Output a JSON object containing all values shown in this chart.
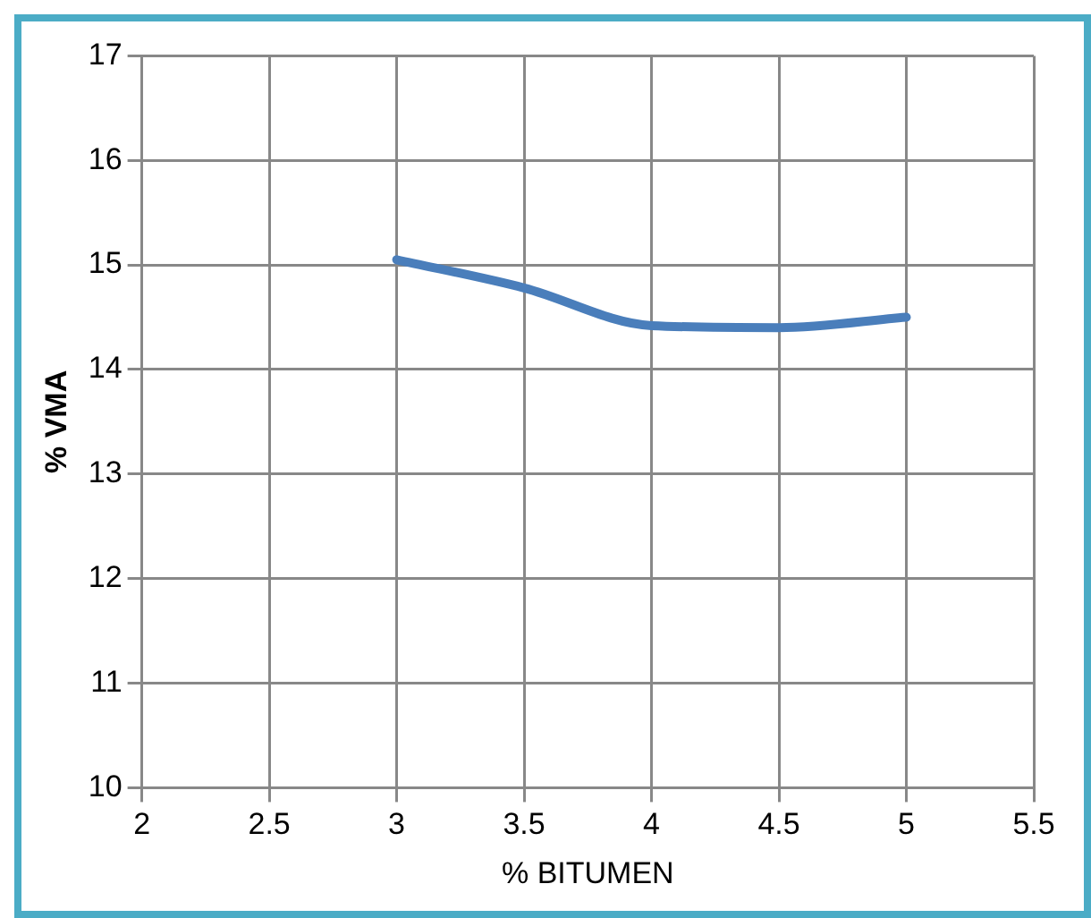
{
  "chart_data": {
    "type": "line",
    "xlabel": "% BITUMEN",
    "ylabel": "% VMA",
    "x": [
      3,
      3.5,
      4,
      4.5,
      5
    ],
    "series": [
      {
        "color": "#4a7ebb",
        "values": [
          15.05,
          14.78,
          14.42,
          14.4,
          14.5
        ]
      }
    ],
    "xlim": [
      2,
      5.5
    ],
    "xticks": [
      2,
      2.5,
      3,
      3.5,
      4,
      4.5,
      5,
      5.5
    ],
    "ylim": [
      10,
      17
    ],
    "yticks": [
      10,
      11,
      12,
      13,
      14,
      15,
      16,
      17
    ],
    "grid": true,
    "legend": false,
    "marker": "none",
    "line_style": "solid"
  }
}
